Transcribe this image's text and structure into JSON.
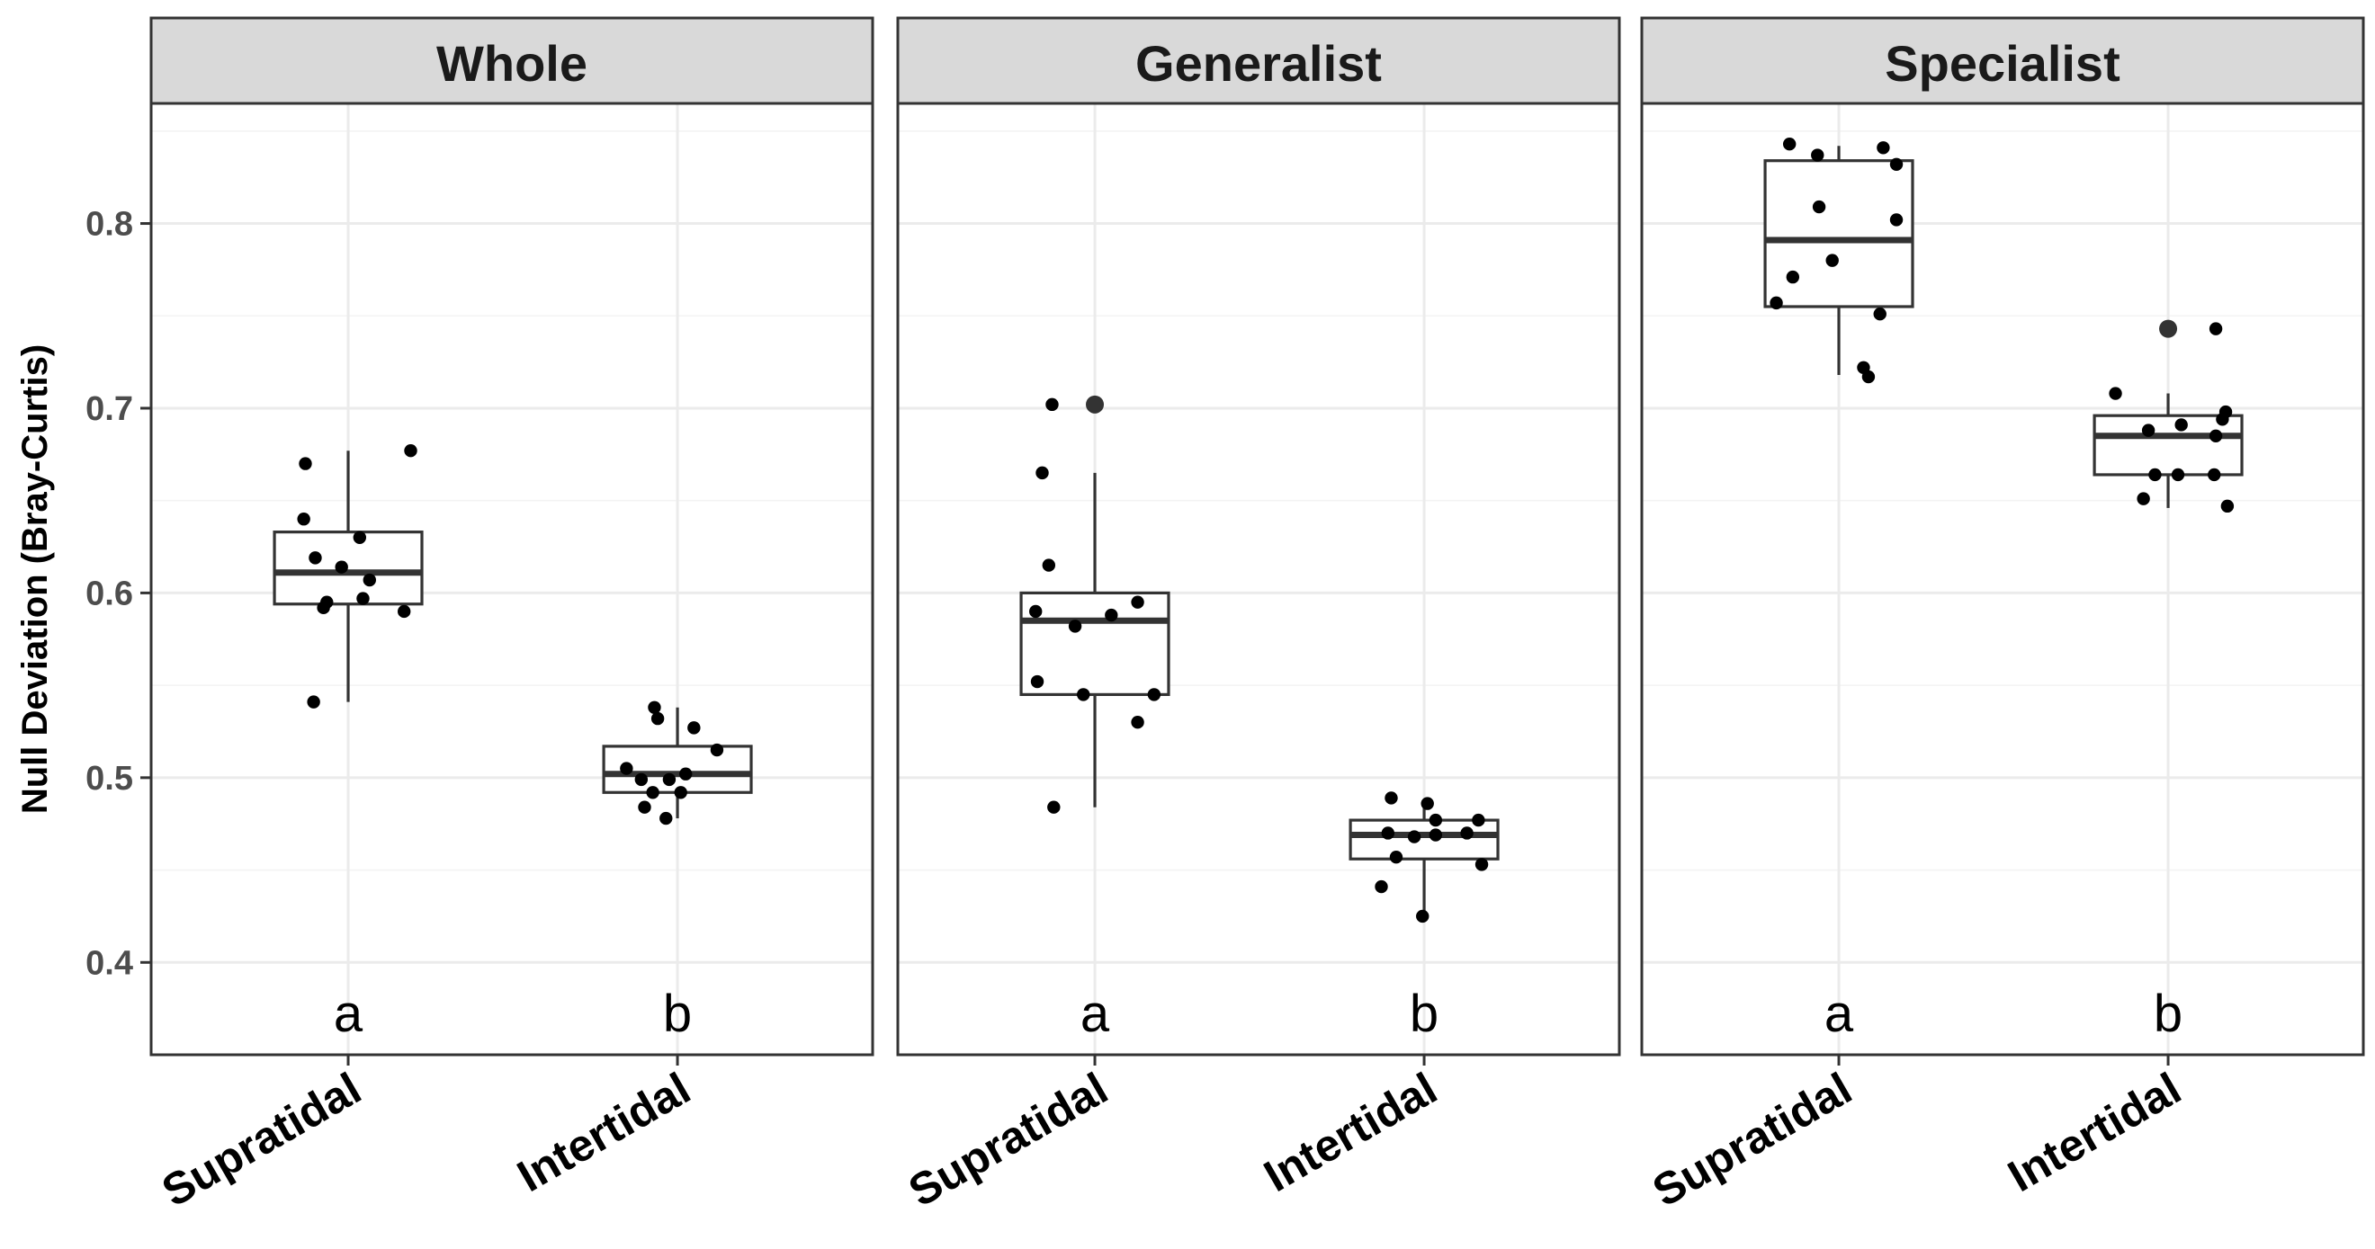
{
  "chart_data": {
    "type": "boxplot",
    "ylabel": "Null Deviation (Bray-Curtis)",
    "xlabel": "",
    "ylim": [
      0.35,
      0.865
    ],
    "yticks": [
      0.4,
      0.5,
      0.6,
      0.7,
      0.8
    ],
    "ytick_labels": [
      "0.4",
      "0.5",
      "0.6",
      "0.7",
      "0.8"
    ],
    "categories": [
      "Supratidal",
      "Intertidal"
    ],
    "grid": true,
    "panels": [
      {
        "title": "Whole",
        "groups": [
          {
            "category": "Supratidal",
            "letter": "a",
            "q1": 0.594,
            "median": 0.611,
            "q3": 0.633,
            "whisker_low": 0.541,
            "whisker_high": 0.677,
            "outliers": [],
            "points": [
              {
                "x": -0.26,
                "y": 0.67
              },
              {
                "x": -0.27,
                "y": 0.64
              },
              {
                "x": -0.2,
                "y": 0.619
              },
              {
                "x": -0.13,
                "y": 0.595
              },
              {
                "x": -0.15,
                "y": 0.592
              },
              {
                "x": -0.04,
                "y": 0.614
              },
              {
                "x": 0.07,
                "y": 0.63
              },
              {
                "x": 0.13,
                "y": 0.607
              },
              {
                "x": 0.09,
                "y": 0.597
              },
              {
                "x": 0.34,
                "y": 0.59
              },
              {
                "x": 0.38,
                "y": 0.677
              },
              {
                "x": -0.21,
                "y": 0.541
              }
            ]
          },
          {
            "category": "Intertidal",
            "letter": "b",
            "q1": 0.492,
            "median": 0.502,
            "q3": 0.517,
            "whisker_low": 0.478,
            "whisker_high": 0.538,
            "outliers": [],
            "points": [
              {
                "x": -0.31,
                "y": 0.505
              },
              {
                "x": -0.22,
                "y": 0.499
              },
              {
                "x": -0.2,
                "y": 0.484
              },
              {
                "x": -0.15,
                "y": 0.492
              },
              {
                "x": -0.14,
                "y": 0.538
              },
              {
                "x": -0.12,
                "y": 0.532
              },
              {
                "x": -0.07,
                "y": 0.478
              },
              {
                "x": -0.05,
                "y": 0.499
              },
              {
                "x": 0.02,
                "y": 0.492
              },
              {
                "x": 0.05,
                "y": 0.502
              },
              {
                "x": 0.1,
                "y": 0.527
              },
              {
                "x": 0.24,
                "y": 0.515
              }
            ]
          }
        ]
      },
      {
        "title": "Generalist",
        "groups": [
          {
            "category": "Supratidal",
            "letter": "a",
            "q1": 0.545,
            "median": 0.585,
            "q3": 0.6,
            "whisker_low": 0.484,
            "whisker_high": 0.665,
            "outliers": [
              0.702
            ],
            "points": [
              {
                "x": -0.36,
                "y": 0.59
              },
              {
                "x": -0.35,
                "y": 0.552
              },
              {
                "x": -0.32,
                "y": 0.665
              },
              {
                "x": -0.28,
                "y": 0.615
              },
              {
                "x": -0.26,
                "y": 0.702
              },
              {
                "x": -0.25,
                "y": 0.484
              },
              {
                "x": -0.12,
                "y": 0.582
              },
              {
                "x": -0.07,
                "y": 0.545
              },
              {
                "x": 0.1,
                "y": 0.588
              },
              {
                "x": 0.26,
                "y": 0.595
              },
              {
                "x": 0.26,
                "y": 0.53
              },
              {
                "x": 0.36,
                "y": 0.545
              }
            ]
          },
          {
            "category": "Intertidal",
            "letter": "b",
            "q1": 0.456,
            "median": 0.469,
            "q3": 0.477,
            "whisker_low": 0.425,
            "whisker_high": 0.487,
            "outliers": [],
            "points": [
              {
                "x": -0.26,
                "y": 0.441
              },
              {
                "x": -0.22,
                "y": 0.47
              },
              {
                "x": -0.2,
                "y": 0.489
              },
              {
                "x": -0.17,
                "y": 0.457
              },
              {
                "x": -0.06,
                "y": 0.468
              },
              {
                "x": -0.01,
                "y": 0.425
              },
              {
                "x": 0.02,
                "y": 0.486
              },
              {
                "x": 0.07,
                "y": 0.477
              },
              {
                "x": 0.07,
                "y": 0.469
              },
              {
                "x": 0.26,
                "y": 0.47
              },
              {
                "x": 0.33,
                "y": 0.477
              },
              {
                "x": 0.35,
                "y": 0.453
              }
            ]
          }
        ]
      },
      {
        "title": "Specialist",
        "groups": [
          {
            "category": "Supratidal",
            "letter": "a",
            "q1": 0.755,
            "median": 0.791,
            "q3": 0.834,
            "whisker_low": 0.718,
            "whisker_high": 0.842,
            "outliers": [],
            "points": [
              {
                "x": -0.38,
                "y": 0.757
              },
              {
                "x": -0.3,
                "y": 0.843
              },
              {
                "x": -0.28,
                "y": 0.771
              },
              {
                "x": -0.13,
                "y": 0.837
              },
              {
                "x": -0.12,
                "y": 0.809
              },
              {
                "x": -0.04,
                "y": 0.78
              },
              {
                "x": 0.15,
                "y": 0.722
              },
              {
                "x": 0.18,
                "y": 0.717
              },
              {
                "x": 0.27,
                "y": 0.841
              },
              {
                "x": 0.25,
                "y": 0.751
              },
              {
                "x": 0.35,
                "y": 0.832
              },
              {
                "x": 0.35,
                "y": 0.802
              }
            ]
          },
          {
            "category": "Intertidal",
            "letter": "b",
            "q1": 0.664,
            "median": 0.685,
            "q3": 0.696,
            "whisker_low": 0.646,
            "whisker_high": 0.708,
            "outliers": [
              0.743
            ],
            "points": [
              {
                "x": -0.32,
                "y": 0.708
              },
              {
                "x": -0.15,
                "y": 0.651
              },
              {
                "x": -0.12,
                "y": 0.688
              },
              {
                "x": -0.08,
                "y": 0.664
              },
              {
                "x": 0.06,
                "y": 0.664
              },
              {
                "x": 0.08,
                "y": 0.691
              },
              {
                "x": 0.29,
                "y": 0.743
              },
              {
                "x": 0.28,
                "y": 0.664
              },
              {
                "x": 0.29,
                "y": 0.685
              },
              {
                "x": 0.33,
                "y": 0.694
              },
              {
                "x": 0.35,
                "y": 0.698
              },
              {
                "x": 0.36,
                "y": 0.647
              }
            ]
          }
        ]
      }
    ]
  }
}
